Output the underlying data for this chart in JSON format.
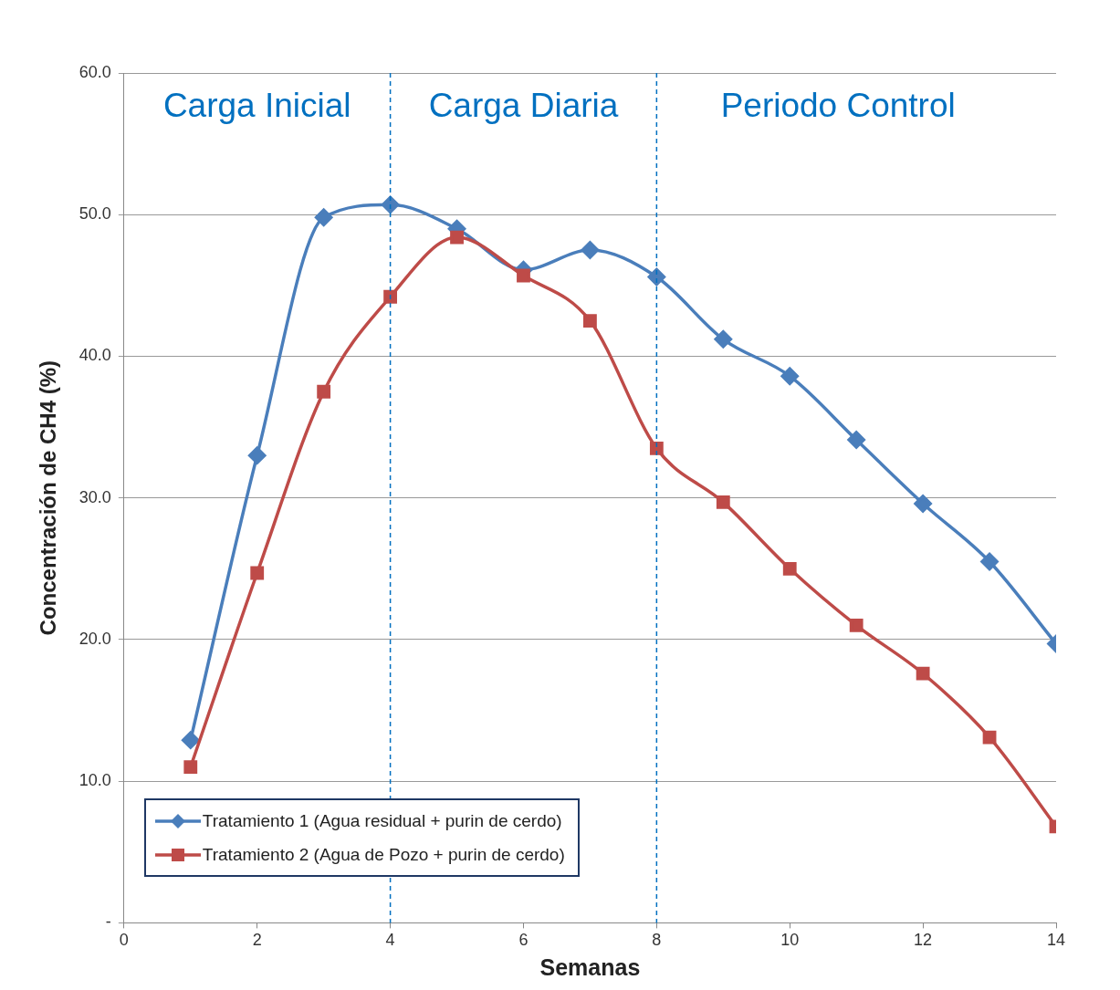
{
  "chart_data": {
    "type": "line",
    "xlabel": "Semanas",
    "ylabel": "Concentración de CH4 (%)",
    "x": [
      1,
      2,
      3,
      4,
      5,
      6,
      7,
      8,
      9,
      10,
      11,
      12,
      13,
      14
    ],
    "series": [
      {
        "name": "Tratamiento 1 (Agua residual + purin de cerdo)",
        "color": "#4a7ebb",
        "marker": "diamond",
        "values": [
          12.9,
          33.0,
          49.8,
          50.7,
          49.0,
          46.1,
          47.5,
          45.6,
          41.2,
          38.6,
          34.1,
          29.6,
          25.5,
          19.7
        ]
      },
      {
        "name": "Tratamiento 2 (Agua de Pozo + purin de cerdo)",
        "color": "#be4b48",
        "marker": "square",
        "values": [
          11.0,
          24.7,
          37.5,
          44.2,
          48.4,
          45.7,
          42.5,
          33.5,
          29.7,
          25.0,
          21.0,
          17.6,
          13.1,
          6.8
        ]
      }
    ],
    "xlim": [
      0,
      14
    ],
    "xticks": [
      0,
      2,
      4,
      6,
      8,
      10,
      12,
      14
    ],
    "ylim": [
      0,
      60
    ],
    "yticks": [
      {
        "value": 0,
        "label": "-"
      },
      {
        "value": 10,
        "label": "10.0"
      },
      {
        "value": 20,
        "label": "20.0"
      },
      {
        "value": 30,
        "label": "30.0"
      },
      {
        "value": 40,
        "label": "40.0"
      },
      {
        "value": 50,
        "label": "50.0"
      },
      {
        "value": 60,
        "label": "60.0"
      }
    ],
    "grid": "y",
    "legend": "bottom left",
    "ref_lines": [
      {
        "axis": "x",
        "value": 4,
        "color": "#0070c0",
        "line_style": "dashed"
      },
      {
        "axis": "x",
        "value": 8,
        "color": "#0070c0",
        "line_style": "dashed"
      }
    ],
    "annotations": [
      "Carga Inicial",
      "Carga Diaria",
      "Periodo Control"
    ]
  }
}
